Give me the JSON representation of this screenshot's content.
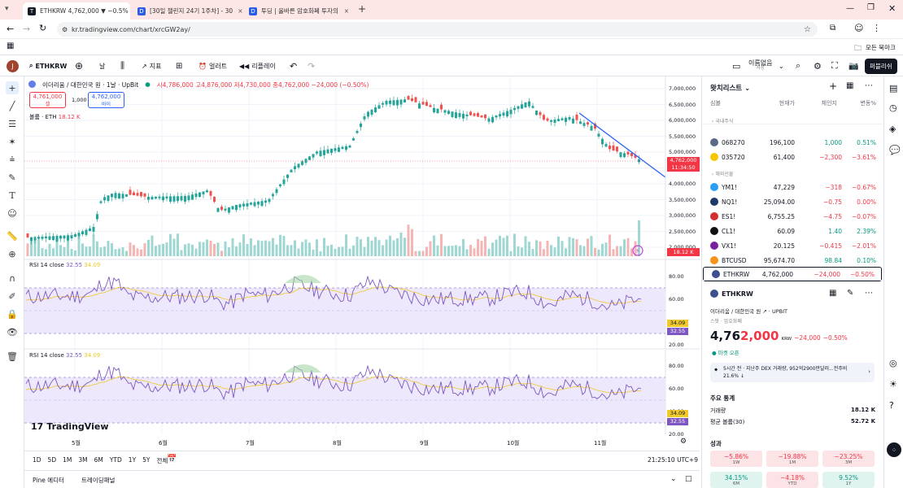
{
  "browser": {
    "tabs": [
      {
        "title": "ETHKRW 4,762,000 ▼ −0.5%",
        "active": true
      },
      {
        "title": "[30일 챌린지 24기 1주차] - 30"
      },
      {
        "title": "투딩 | 올바른 암호화폐 투자의"
      }
    ],
    "url": "kr.tradingview.com/chart/xrcGW2ay/",
    "bookmarks_label": "모든 북마크",
    "colors": {
      "tabbar": "#fde6e6",
      "accent": "#2962ff"
    }
  },
  "toolbar": {
    "avatar_letter": "J",
    "symbol": "ETHKRW",
    "interval": "날",
    "indicators": "지표",
    "alert": "얼러트",
    "replay": "리플레이",
    "layout_name": "이름없음",
    "layout_sub": "저장",
    "publish": "퍼블리쉬"
  },
  "legend": {
    "title": "이더리움 / 대한민국 원 · 1날 · UpBit",
    "ohlc": "시4,786,000 고4,876,000 저4,730,000 종4,762,000 −24,000 (−0.50%)",
    "sell_price": "4,761,000",
    "sell_label": "셀",
    "spread": "1,000",
    "buy_price": "4,762,000",
    "buy_label": "바이",
    "volume_label": "볼륨 · ETH",
    "volume_value": "18.12 K",
    "rsi1_label": "RSI 14 close",
    "rsi1_v1": "32.55",
    "rsi1_v2": "34.09",
    "rsi2_label": "RSI 14 close",
    "rsi2_v1": "32.55",
    "rsi2_v2": "34.09"
  },
  "price_axis": [
    "7,000,000",
    "6,500,000",
    "6,000,000",
    "5,500,000",
    "5,000,000",
    "4,500,000",
    "4,000,000",
    "3,500,000",
    "3,000,000",
    "2,500,000",
    "2,000,000"
  ],
  "price_tag": {
    "price": "4,762,000",
    "time": "11:34:50",
    "volume": "18.12 K"
  },
  "rsi_axis": [
    "80.00",
    "60.00",
    "40.00",
    "20.00"
  ],
  "rsi_tags": [
    "34.09",
    "32.55"
  ],
  "time_axis": [
    "5월",
    "6월",
    "7월",
    "8월",
    "9월",
    "10월",
    "11월"
  ],
  "brand": "TradingView",
  "ranges": [
    "1D",
    "5D",
    "1M",
    "3M",
    "6M",
    "YTD",
    "1Y",
    "5Y",
    "전체"
  ],
  "clock": "21:25:10 UTC+9",
  "bottom_tabs": [
    "Pine 에디터",
    "트레이딩패널"
  ],
  "watchlist": {
    "title": "왓치리스트",
    "columns": [
      "심볼",
      "현재가",
      "체인지",
      "변동%"
    ],
    "section_domestic": "국내주식",
    "section_futures": "해외선물",
    "rows": [
      {
        "sym": "068270",
        "price": "196,100",
        "chg": "1,000",
        "pct": "0.51%",
        "dir": "pos",
        "color": "#5a6b8a"
      },
      {
        "sym": "035720",
        "price": "61,400",
        "chg": "−2,300",
        "pct": "−3.61%",
        "dir": "neg",
        "color": "#f7c600"
      },
      {
        "sym": "YM1!",
        "price": "47,229",
        "chg": "−318",
        "pct": "−0.67%",
        "dir": "neg",
        "color": "#2a9df4"
      },
      {
        "sym": "NQ1!",
        "price": "25,094.00",
        "chg": "−0.75",
        "pct": "0.00%",
        "dir": "neg",
        "color": "#1b3a6b"
      },
      {
        "sym": "ES1!",
        "price": "6,755.25",
        "chg": "−4.75",
        "pct": "−0.07%",
        "dir": "neg",
        "color": "#d32f2f"
      },
      {
        "sym": "CL1!",
        "price": "60.09",
        "chg": "1.40",
        "pct": "2.39%",
        "dir": "pos",
        "color": "#111111"
      },
      {
        "sym": "VX1!",
        "price": "20.125",
        "chg": "−0.415",
        "pct": "−2.01%",
        "dir": "neg",
        "color": "#7b1fa2"
      },
      {
        "sym": "BTCUSD",
        "price": "95,674.70",
        "chg": "98.84",
        "pct": "0.10%",
        "dir": "pos",
        "color": "#f7931a"
      },
      {
        "sym": "ETHKRW",
        "price": "4,762,000",
        "chg": "−24,000",
        "pct": "−0.50%",
        "dir": "neg",
        "color": "#3c4f91"
      }
    ]
  },
  "details": {
    "symbol": "ETHKRW",
    "name": "이더리움 / 대한민국 원",
    "exchange": "UPBIT",
    "category": "스팟 · 암호화폐",
    "price_main": "4,76",
    "price_tail": "2,000",
    "currency": "KRW",
    "change": "−24,000",
    "change_pct": "−0.50%",
    "market_status": "마켓 오픈",
    "news": "5시간 전 · 지난주 DEX 거래량, 952억2900만달러...전주비 21.6% ↓",
    "stats_title": "주요 통계",
    "stats": [
      {
        "label": "거래량",
        "value": "18.12 K"
      },
      {
        "label": "평균 볼륨(30)",
        "value": "52.72 K"
      }
    ],
    "perf_title": "성과",
    "perf": [
      {
        "v": "−5.86%",
        "p": "1W",
        "dir": "n"
      },
      {
        "v": "−19.88%",
        "p": "1M",
        "dir": "n"
      },
      {
        "v": "−23.25%",
        "p": "3M",
        "dir": "n"
      },
      {
        "v": "34.15%",
        "p": "6M",
        "dir": "p"
      },
      {
        "v": "−4.18%",
        "p": "YTD",
        "dir": "n"
      },
      {
        "v": "9.52%",
        "p": "1Y",
        "dir": "p"
      }
    ]
  }
}
